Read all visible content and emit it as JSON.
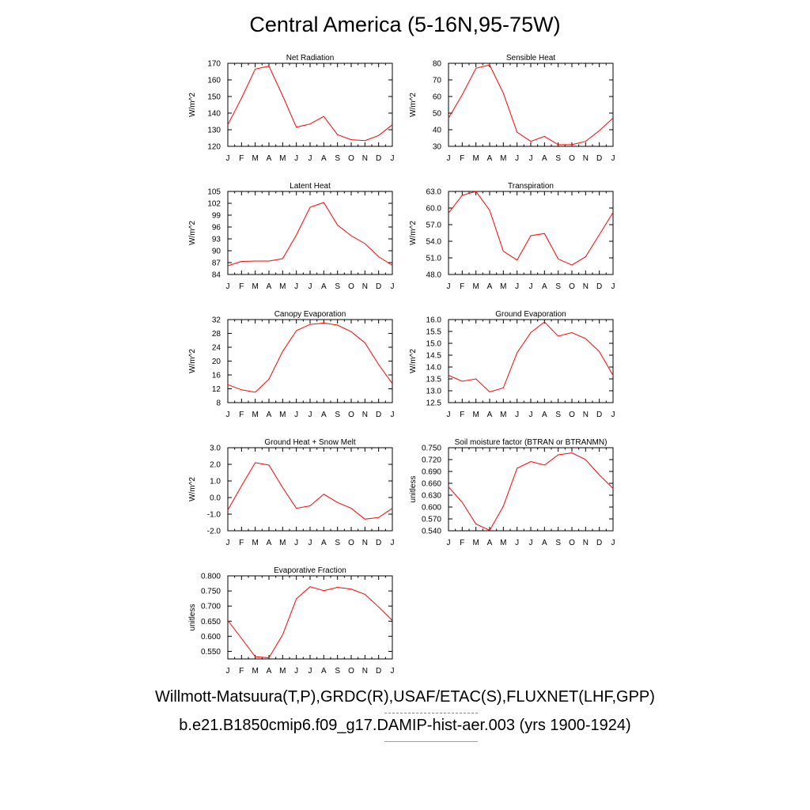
{
  "title": "Central America (5-16N,95-75W)",
  "legend": {
    "observations": "Willmott-Matsuura(T,P),GRDC(R),USAF/ETAC(S),FLUXNET(LHF,GPP)",
    "model": "b.e21.B1850cmip6.f09_g17.DAMIP-hist-aer.003 (yrs 1900-1924)"
  },
  "colors": {
    "model": "#ff0000",
    "observations": "#7b7bea"
  },
  "chart_data": [
    {
      "type": "line",
      "title": "Net Radiation",
      "ylabel": "W/m^2",
      "categories": [
        "J",
        "F",
        "M",
        "A",
        "M",
        "J",
        "J",
        "A",
        "S",
        "O",
        "N",
        "D",
        "J"
      ],
      "yticks": [
        "120",
        "130",
        "140",
        "150",
        "160",
        "170"
      ],
      "ylim": [
        120,
        170
      ],
      "series": [
        {
          "values": [
            133,
            149,
            166.5,
            168.3,
            150.5,
            131.5,
            133.5,
            138,
            127,
            124,
            123.5,
            126.5,
            133
          ]
        }
      ]
    },
    {
      "type": "line",
      "title": "Sensible Heat",
      "ylabel": "W/m^2",
      "categories": [
        "J",
        "F",
        "M",
        "A",
        "M",
        "J",
        "J",
        "A",
        "S",
        "O",
        "N",
        "D",
        "J"
      ],
      "yticks": [
        "30",
        "40",
        "50",
        "60",
        "70",
        "80"
      ],
      "ylim": [
        30,
        80
      ],
      "series": [
        {
          "values": [
            47,
            61,
            77,
            79,
            62,
            38.5,
            33,
            36,
            31,
            31,
            33,
            39.5,
            47
          ]
        }
      ]
    },
    {
      "type": "line",
      "title": "Latent Heat",
      "ylabel": "W/m^2",
      "categories": [
        "J",
        "F",
        "M",
        "A",
        "M",
        "J",
        "J",
        "A",
        "S",
        "O",
        "N",
        "D",
        "J"
      ],
      "yticks": [
        "84",
        "87",
        "90",
        "93",
        "96",
        "99",
        "102",
        "105"
      ],
      "ylim": [
        84,
        105
      ],
      "series": [
        {
          "values": [
            86.2,
            87.3,
            87.4,
            87.4,
            88,
            94,
            101,
            102.2,
            96.5,
            93.8,
            91.8,
            88.5,
            86.3
          ]
        }
      ]
    },
    {
      "type": "line",
      "title": "Transpiration",
      "ylabel": "W/m^2",
      "categories": [
        "J",
        "F",
        "M",
        "A",
        "M",
        "J",
        "J",
        "A",
        "S",
        "O",
        "N",
        "D",
        "J"
      ],
      "yticks": [
        "48.0",
        "51.0",
        "54.0",
        "57.0",
        "60.0",
        "63.0"
      ],
      "ylim": [
        48,
        63
      ],
      "series": [
        {
          "values": [
            59.1,
            62.3,
            63.0,
            59.6,
            52.2,
            50.6,
            55.0,
            55.4,
            50.8,
            49.7,
            51.2,
            55.2,
            59.2
          ]
        }
      ]
    },
    {
      "type": "line",
      "title": "Canopy Evaporation",
      "ylabel": "W/m^2",
      "categories": [
        "J",
        "F",
        "M",
        "A",
        "M",
        "J",
        "J",
        "A",
        "S",
        "O",
        "N",
        "D",
        "J"
      ],
      "yticks": [
        "8",
        "12",
        "16",
        "20",
        "24",
        "28",
        "32"
      ],
      "ylim": [
        8,
        32
      ],
      "series": [
        {
          "values": [
            13.2,
            11.7,
            11,
            14.8,
            22.8,
            28.8,
            30.6,
            31,
            30.4,
            28.5,
            25.3,
            19,
            13.5
          ]
        }
      ]
    },
    {
      "type": "line",
      "title": "Ground Evaporation",
      "ylabel": "W/m^2",
      "categories": [
        "J",
        "F",
        "M",
        "A",
        "M",
        "J",
        "J",
        "A",
        "S",
        "O",
        "N",
        "D",
        "J"
      ],
      "yticks": [
        "12.5",
        "13.0",
        "13.5",
        "14.0",
        "14.5",
        "15.0",
        "15.5",
        "16.0"
      ],
      "ylim": [
        12.5,
        16
      ],
      "series": [
        {
          "values": [
            13.65,
            13.4,
            13.5,
            12.95,
            13.12,
            14.6,
            15.45,
            15.9,
            15.3,
            15.45,
            15.2,
            14.65,
            13.65
          ]
        }
      ]
    },
    {
      "type": "line",
      "title": "Ground Heat + Snow Melt",
      "ylabel": "W/m^2",
      "categories": [
        "J",
        "F",
        "M",
        "A",
        "M",
        "J",
        "J",
        "A",
        "S",
        "O",
        "N",
        "D",
        "J"
      ],
      "yticks": [
        "-2.0",
        "-1.0",
        "0.0",
        "1.0",
        "2.0",
        "3.0"
      ],
      "ylim": [
        -2,
        3
      ],
      "series": [
        {
          "values": [
            -0.75,
            0.7,
            2.1,
            1.95,
            0.6,
            -0.65,
            -0.5,
            0.2,
            -0.3,
            -0.65,
            -1.3,
            -1.2,
            -0.65
          ]
        }
      ]
    },
    {
      "type": "line",
      "title": "Soil moisture factor (BTRAN or BTRANMN)",
      "ylabel": "unitless",
      "categories": [
        "J",
        "F",
        "M",
        "A",
        "M",
        "J",
        "J",
        "A",
        "S",
        "O",
        "N",
        "D",
        "J"
      ],
      "yticks": [
        "0.540",
        "0.570",
        "0.600",
        "0.630",
        "0.660",
        "0.690",
        "0.720",
        "0.750"
      ],
      "ylim": [
        0.54,
        0.75
      ],
      "series": [
        {
          "values": [
            0.651,
            0.612,
            0.557,
            0.541,
            0.602,
            0.698,
            0.715,
            0.706,
            0.732,
            0.737,
            0.72,
            0.681,
            0.647
          ]
        }
      ]
    },
    {
      "type": "line",
      "title": "Evaporative Fraction",
      "ylabel": "unitless",
      "categories": [
        "J",
        "F",
        "M",
        "A",
        "M",
        "J",
        "J",
        "A",
        "S",
        "O",
        "N",
        "D",
        "J"
      ],
      "yticks": [
        "0.550",
        "0.600",
        "0.650",
        "0.700",
        "0.750",
        "0.800"
      ],
      "ylim": [
        0.525,
        0.8
      ],
      "series": [
        {
          "values": [
            0.652,
            0.593,
            0.532,
            0.529,
            0.605,
            0.724,
            0.764,
            0.751,
            0.762,
            0.756,
            0.739,
            0.697,
            0.652
          ]
        }
      ]
    }
  ]
}
